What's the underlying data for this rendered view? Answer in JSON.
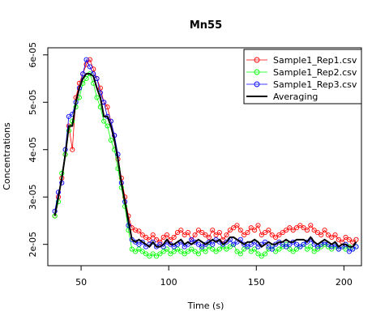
{
  "chart_data": {
    "type": "line",
    "title": "Mn55",
    "xlabel": "Time (s)",
    "ylabel": "Concentrations",
    "xlim": [
      31,
      210
    ],
    "ylim": [
      1.55e-05,
      6.15e-05
    ],
    "x_ticks": [
      50,
      100,
      150,
      200
    ],
    "x_tick_labels": [
      "50",
      "100",
      "150",
      "200"
    ],
    "y_ticks": [
      2e-05,
      3e-05,
      4e-05,
      5e-05,
      6e-05
    ],
    "y_tick_labels": [
      "2e-05",
      "3e-05",
      "4e-05",
      "5e-05",
      "6e-05"
    ],
    "grid": false,
    "legend_position": "top-right",
    "x": [
      35,
      37,
      39,
      41,
      43,
      45,
      47,
      49,
      51,
      53,
      55,
      57,
      59,
      61,
      63,
      65,
      67,
      69,
      71,
      73,
      75,
      77,
      79,
      81,
      83,
      85,
      87,
      89,
      91,
      93,
      95,
      97,
      99,
      101,
      103,
      105,
      107,
      109,
      111,
      113,
      115,
      117,
      119,
      121,
      123,
      125,
      127,
      129,
      131,
      133,
      135,
      137,
      139,
      141,
      143,
      145,
      147,
      149,
      151,
      153,
      155,
      157,
      159,
      161,
      163,
      165,
      167,
      169,
      171,
      173,
      175,
      177,
      179,
      181,
      183,
      185,
      187,
      189,
      191,
      193,
      195,
      197,
      199,
      201,
      203,
      205,
      207
    ],
    "series": [
      {
        "name": "Sample1_Rep1.csv",
        "color": "#ff0000",
        "style": "points-line",
        "values": [
          2.6e-05,
          3e-05,
          3.4e-05,
          3.9e-05,
          4.5e-05,
          4e-05,
          5.1e-05,
          5.4e-05,
          5.6e-05,
          5.8e-05,
          5.9e-05,
          5.7e-05,
          5.5e-05,
          5.3e-05,
          5e-05,
          4.9e-05,
          4.6e-05,
          4.3e-05,
          3.8e-05,
          3.4e-05,
          3e-05,
          2.6e-05,
          2.35e-05,
          2.3e-05,
          2.28e-05,
          2.2e-05,
          2.15e-05,
          2.1e-05,
          2.2e-05,
          2.1e-05,
          2.05e-05,
          2.15e-05,
          2.2e-05,
          2.1e-05,
          2.15e-05,
          2.25e-05,
          2.3e-05,
          2.2e-05,
          2.25e-05,
          2.1e-05,
          2.2e-05,
          2.3e-05,
          2.25e-05,
          2.2e-05,
          2.15e-05,
          2.3e-05,
          2.2e-05,
          2.25e-05,
          2.1e-05,
          2.2e-05,
          2.3e-05,
          2.35e-05,
          2.4e-05,
          2.3e-05,
          2.2e-05,
          2.25e-05,
          2.35e-05,
          2.3e-05,
          2.4e-05,
          2.2e-05,
          2.25e-05,
          2.3e-05,
          2.2e-05,
          2.15e-05,
          2.2e-05,
          2.25e-05,
          2.3e-05,
          2.35e-05,
          2.3e-05,
          2.35e-05,
          2.4e-05,
          2.35e-05,
          2.3e-05,
          2.4e-05,
          2.3e-05,
          2.25e-05,
          2.2e-05,
          2.3e-05,
          2.2e-05,
          2.15e-05,
          2.2e-05,
          2.1e-05,
          2.05e-05,
          2.15e-05,
          2.1e-05,
          2.05e-05,
          2.1e-05
        ]
      },
      {
        "name": "Sample1_Rep2.csv",
        "color": "#00ff00",
        "style": "points-line",
        "values": [
          2.6e-05,
          2.9e-05,
          3.5e-05,
          3.9e-05,
          4.4e-05,
          4.6e-05,
          4.9e-05,
          5.1e-05,
          5.4e-05,
          5.5e-05,
          5.6e-05,
          5.4e-05,
          5.1e-05,
          4.9e-05,
          4.6e-05,
          4.5e-05,
          4.2e-05,
          4e-05,
          3.6e-05,
          3.2e-05,
          2.8e-05,
          2.3e-05,
          1.9e-05,
          1.85e-05,
          1.9e-05,
          1.85e-05,
          1.8e-05,
          1.75e-05,
          1.8e-05,
          1.75e-05,
          1.8e-05,
          1.85e-05,
          1.9e-05,
          1.8e-05,
          1.85e-05,
          1.9e-05,
          1.85e-05,
          1.8e-05,
          1.85e-05,
          1.9e-05,
          1.85e-05,
          1.8e-05,
          1.9e-05,
          1.85e-05,
          1.95e-05,
          1.9e-05,
          1.85e-05,
          1.9e-05,
          1.95e-05,
          1.9e-05,
          1.95e-05,
          2e-05,
          1.85e-05,
          1.8e-05,
          1.9e-05,
          1.95e-05,
          1.85e-05,
          1.9e-05,
          1.8e-05,
          1.75e-05,
          1.8e-05,
          1.9e-05,
          1.95e-05,
          1.85e-05,
          1.9e-05,
          1.95e-05,
          2e-05,
          1.9e-05,
          1.85e-05,
          1.9e-05,
          1.95e-05,
          2e-05,
          1.9e-05,
          1.95e-05,
          1.85e-05,
          1.9e-05,
          1.95e-05,
          2e-05,
          1.95e-05,
          1.9e-05,
          1.95e-05,
          1.9e-05,
          1.95e-05,
          1.9e-05,
          1.95e-05,
          1.9e-05,
          1.95e-05
        ]
      },
      {
        "name": "Sample1_Rep3.csv",
        "color": "#0000ff",
        "style": "points-line",
        "values": [
          2.7e-05,
          3.1e-05,
          3.3e-05,
          4e-05,
          4.7e-05,
          4.75e-05,
          5e-05,
          5.3e-05,
          5.6e-05,
          5.9e-05,
          5.75e-05,
          5.6e-05,
          5.5e-05,
          5.2e-05,
          5e-05,
          4.7e-05,
          4.6e-05,
          4.3e-05,
          3.9e-05,
          3.3e-05,
          2.9e-05,
          2.4e-05,
          2.1e-05,
          2.05e-05,
          2e-05,
          2.05e-05,
          1.95e-05,
          2e-05,
          2.05e-05,
          1.95e-05,
          2e-05,
          1.95e-05,
          2.05e-05,
          2e-05,
          1.95e-05,
          2e-05,
          2.05e-05,
          1.95e-05,
          2e-05,
          2.1e-05,
          2.05e-05,
          2e-05,
          1.95e-05,
          2e-05,
          2.05e-05,
          2e-05,
          2.1e-05,
          2.05e-05,
          2e-05,
          2.05e-05,
          2.1e-05,
          2e-05,
          2.05e-05,
          2.1e-05,
          2e-05,
          1.95e-05,
          2e-05,
          2.05e-05,
          1.95e-05,
          2e-05,
          2.05e-05,
          1.95e-05,
          1.9e-05,
          2e-05,
          2.05e-05,
          2e-05,
          1.95e-05,
          2e-05,
          2.05e-05,
          2e-05,
          1.95e-05,
          2e-05,
          2.05e-05,
          2.1e-05,
          2e-05,
          1.95e-05,
          2e-05,
          2.05e-05,
          2e-05,
          1.95e-05,
          2e-05,
          1.9e-05,
          1.95e-05,
          2e-05,
          1.85e-05,
          1.9e-05,
          1.95e-05
        ]
      },
      {
        "name": "Averaging",
        "color": "#000000",
        "style": "line",
        "values": [
          2.6e-05,
          3e-05,
          3.4e-05,
          3.9e-05,
          4.5e-05,
          4.5e-05,
          5e-05,
          5.3e-05,
          5.5e-05,
          5.6e-05,
          5.6e-05,
          5.55e-05,
          5.3e-05,
          5.1e-05,
          4.7e-05,
          4.7e-05,
          4.5e-05,
          4.2e-05,
          3.8e-05,
          3.3e-05,
          2.9e-05,
          2.5e-05,
          2.1e-05,
          2.05e-05,
          2.1e-05,
          2.05e-05,
          2e-05,
          1.95e-05,
          2.05e-05,
          1.95e-05,
          1.95e-05,
          2e-05,
          2.1e-05,
          2e-05,
          2e-05,
          2.05e-05,
          2.1e-05,
          2e-05,
          2.05e-05,
          2e-05,
          2.05e-05,
          2.1e-05,
          2.05e-05,
          2e-05,
          2.05e-05,
          2.1e-05,
          2.05e-05,
          2.1e-05,
          2e-05,
          2.05e-05,
          2.15e-05,
          2.15e-05,
          2.1e-05,
          2.05e-05,
          2e-05,
          2.05e-05,
          2.05e-05,
          2.1e-05,
          2.05e-05,
          1.95e-05,
          2e-05,
          2.05e-05,
          2e-05,
          2e-05,
          2.05e-05,
          2.05e-05,
          2.1e-05,
          2.05e-05,
          2.05e-05,
          2.1e-05,
          2.1e-05,
          2.1e-05,
          2.05e-05,
          2.15e-05,
          2.05e-05,
          2e-05,
          2.05e-05,
          2.1e-05,
          2.05e-05,
          2e-05,
          2.05e-05,
          1.95e-05,
          2e-05,
          2e-05,
          1.95e-05,
          1.95e-05,
          2.05e-05
        ]
      }
    ]
  }
}
